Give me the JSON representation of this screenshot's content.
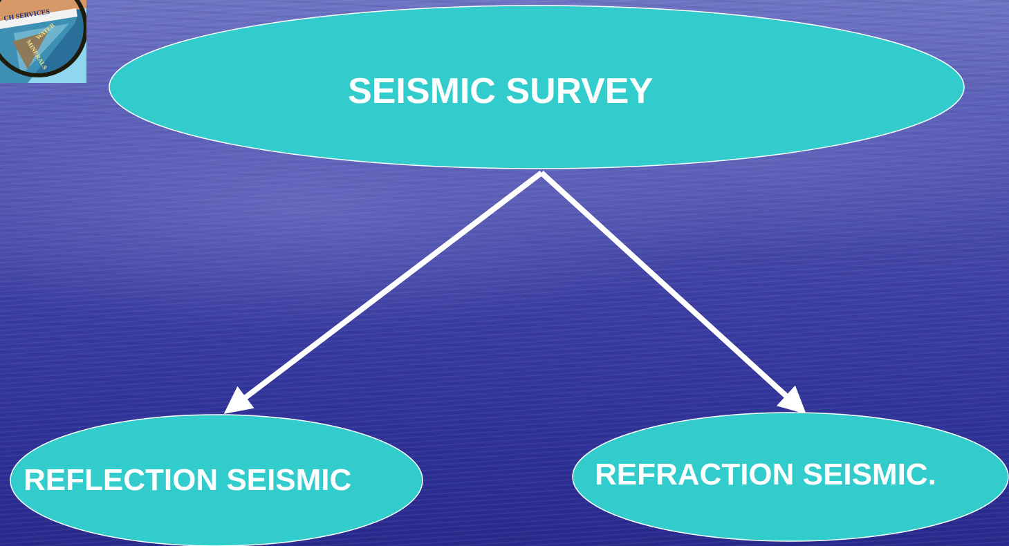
{
  "diagram": {
    "root": "SEISMIC SURVEY",
    "children": [
      "REFLECTION SEISMIC",
      "REFRACTION SEISMIC."
    ]
  },
  "logo": {
    "band_text": "CH SERVICES",
    "side_text_1": "WATER",
    "side_text_2": "MINERALS"
  },
  "colors": {
    "node_fill": "#33cccc",
    "node_outline": "#ffffff",
    "arrow": "#ffffff",
    "text": "#ffffff"
  }
}
